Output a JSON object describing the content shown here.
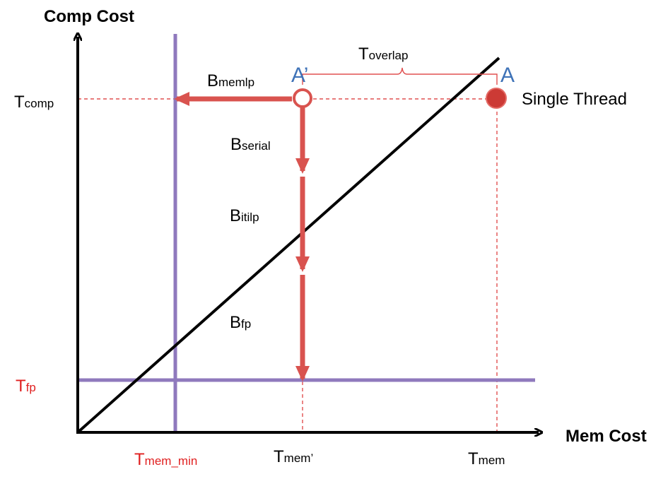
{
  "axes": {
    "y_title": "Comp Cost",
    "x_title": "Mem Cost"
  },
  "labels": {
    "t_comp": {
      "main": "T",
      "sub": "comp"
    },
    "t_fp": {
      "main": "T",
      "sub": "fp"
    },
    "t_mem_min": {
      "main": "T",
      "sub": "mem_min"
    },
    "t_mem_prime": {
      "main": "T",
      "sub": "mem’"
    },
    "t_mem": {
      "main": "T",
      "sub": "mem"
    },
    "t_overlap": {
      "main": "T",
      "sub": "overlap"
    },
    "b_memlp": {
      "main": "B",
      "sub": "memlp"
    },
    "b_serial": {
      "main": "B",
      "sub": "serial"
    },
    "b_itilp": {
      "main": "B",
      "sub": "itilp"
    },
    "b_fp": {
      "main": "B",
      "sub": "fp"
    },
    "point_a_prime": "A’",
    "point_a": "A",
    "single_thread": "Single Thread"
  },
  "colors": {
    "axis": "#000000",
    "diagonal": "#000000",
    "limit_line": "#8f79bd",
    "arrow": "#d9534f",
    "guide": "#e05050",
    "point_label": "#3f73b8",
    "red_label": "#e02020"
  }
}
